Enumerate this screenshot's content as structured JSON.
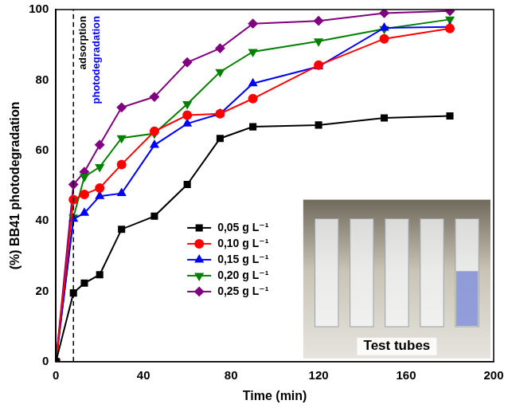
{
  "chart_data": {
    "type": "line",
    "x_label": "Time (min)",
    "y_label": "(%) BB41 photodegradation",
    "x": [
      0,
      8,
      13,
      20,
      30,
      45,
      60,
      75,
      90,
      120,
      150,
      180
    ],
    "series": [
      {
        "name": "0,05 g L⁻¹",
        "color": "#000000",
        "marker": "square",
        "values": [
          0,
          19.5,
          22.3,
          24.7,
          37.6,
          41.3,
          50.3,
          63.4,
          66.7,
          67.2,
          69.2,
          69.8
        ]
      },
      {
        "name": "0,10 g L⁻¹",
        "color": "#ff0000",
        "marker": "circle",
        "values": [
          0,
          46,
          47.5,
          49.3,
          56,
          65.4,
          70,
          70.4,
          74.7,
          84.2,
          91.7,
          94.6
        ]
      },
      {
        "name": "0,15 g L⁻¹",
        "color": "#0000ff",
        "marker": "triangle",
        "values": [
          0,
          40.5,
          42.2,
          47,
          47.8,
          61.5,
          67.6,
          70.4,
          79,
          83.8,
          94.8,
          95.1
        ]
      },
      {
        "name": "0,20 g L⁻¹",
        "color": "#008000",
        "marker": "triangle_down",
        "values": [
          0,
          41,
          52.5,
          55.3,
          63.5,
          64.8,
          73.2,
          82.3,
          88,
          91,
          94.5,
          97.2
        ]
      },
      {
        "name": "0,25 g L⁻¹",
        "color": "#800080",
        "marker": "diamond",
        "values": [
          0,
          50.3,
          53.9,
          61.6,
          72.2,
          75.2,
          85,
          89,
          96,
          96.8,
          99,
          99.6
        ]
      }
    ],
    "xlim": [
      0,
      200
    ],
    "xticks": [
      0,
      40,
      80,
      120,
      160,
      200
    ],
    "ylim": [
      0,
      100
    ],
    "yticks": [
      0,
      20,
      40,
      60,
      80,
      100
    ],
    "grid": false,
    "legend": "lower center",
    "annotations": [
      {
        "x": 8,
        "text": "adsorption",
        "color": "#000000"
      },
      {
        "x": 8,
        "text": "photodegradation",
        "color": "#0000ff"
      }
    ],
    "inset_label": "Test tubes"
  }
}
